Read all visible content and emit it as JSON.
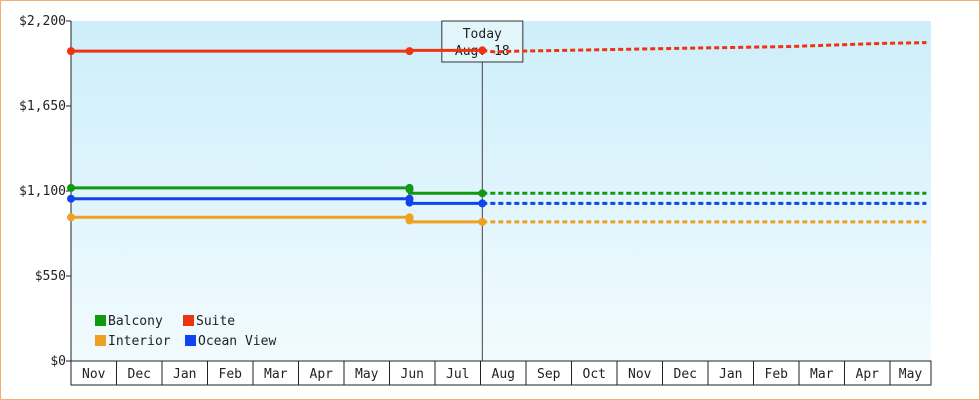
{
  "chart_data": {
    "type": "line",
    "y_ticks": [
      "$0",
      "$550",
      "$1,100",
      "$1,650",
      "$2,200"
    ],
    "y_tick_values": [
      0,
      550,
      1100,
      1650,
      2200
    ],
    "ylim": [
      0,
      2200
    ],
    "months": [
      "Nov",
      "Dec",
      "Jan",
      "Feb",
      "Mar",
      "Apr",
      "May",
      "Jun",
      "Jul",
      "Aug",
      "Sep",
      "Oct",
      "Nov",
      "Dec",
      "Jan",
      "Feb",
      "Mar",
      "Apr",
      "May"
    ],
    "today": {
      "title": "Today",
      "date": "Aug. 18",
      "x": 9.04
    },
    "legend": [
      {
        "name": "Balcony",
        "color": "#119911"
      },
      {
        "name": "Suite",
        "color": "#ee3311"
      },
      {
        "name": "Interior",
        "color": "#f0a020"
      },
      {
        "name": "Ocean View",
        "color": "#1144ee"
      }
    ],
    "series": [
      {
        "name": "Balcony",
        "color": "#119911",
        "values": [
          [
            0,
            1120
          ],
          [
            7.44,
            1120
          ],
          [
            7.44,
            1085
          ],
          [
            9.04,
            1085
          ]
        ],
        "markers": [
          [
            0,
            1120
          ],
          [
            7.44,
            1120
          ],
          [
            7.44,
            1110
          ],
          [
            9.04,
            1085
          ]
        ],
        "projection": [
          [
            9.04,
            1085
          ],
          [
            18.8,
            1085
          ]
        ]
      },
      {
        "name": "Suite",
        "color": "#ee3311",
        "values": [
          [
            0,
            2005
          ],
          [
            7.44,
            2005
          ],
          [
            7.44,
            2010
          ],
          [
            9.04,
            2010
          ]
        ],
        "markers": [
          [
            0,
            2005
          ],
          [
            7.44,
            2005
          ],
          [
            9.04,
            2010
          ]
        ],
        "projection": [
          [
            9.04,
            2010
          ],
          [
            9.3,
            2000
          ],
          [
            9.8,
            2005
          ],
          [
            10.8,
            2010
          ],
          [
            11.8,
            2015
          ],
          [
            12.8,
            2020
          ],
          [
            13.8,
            2025
          ],
          [
            14.8,
            2030
          ],
          [
            15.8,
            2035
          ],
          [
            16.8,
            2045
          ],
          [
            17.8,
            2055
          ],
          [
            18.8,
            2060
          ]
        ]
      },
      {
        "name": "Interior",
        "color": "#f0a020",
        "values": [
          [
            0,
            930
          ],
          [
            7.44,
            930
          ],
          [
            7.44,
            900
          ],
          [
            9.04,
            900
          ]
        ],
        "markers": [
          [
            0,
            930
          ],
          [
            7.44,
            930
          ],
          [
            7.44,
            910
          ],
          [
            9.04,
            900
          ]
        ],
        "projection": [
          [
            9.04,
            900
          ],
          [
            18.8,
            900
          ]
        ]
      },
      {
        "name": "Ocean View",
        "color": "#1144ee",
        "values": [
          [
            0,
            1050
          ],
          [
            7.44,
            1050
          ],
          [
            7.44,
            1020
          ],
          [
            9.04,
            1020
          ]
        ],
        "markers": [
          [
            0,
            1050
          ],
          [
            7.44,
            1050
          ],
          [
            7.44,
            1025
          ],
          [
            9.04,
            1020
          ]
        ],
        "projection": [
          [
            9.04,
            1020
          ],
          [
            18.8,
            1020
          ]
        ]
      }
    ],
    "grid": false
  }
}
